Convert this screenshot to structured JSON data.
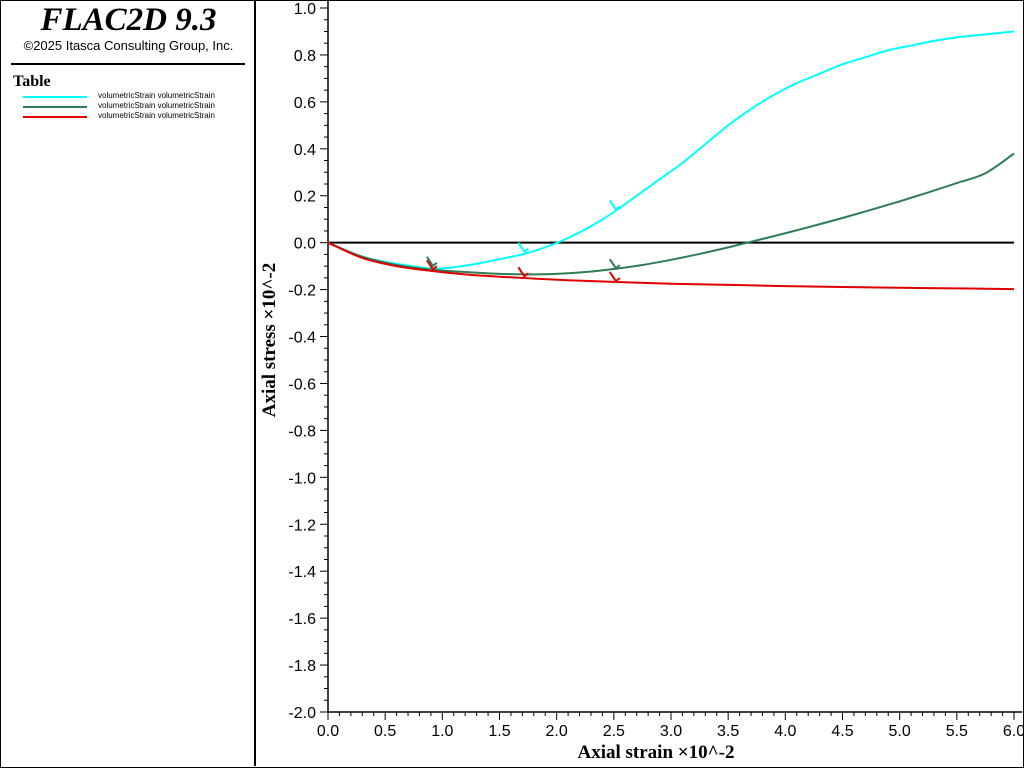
{
  "header": {
    "app_title": "FLAC2D 9.3",
    "copyright": "©2025 Itasca Consulting Group, Inc."
  },
  "legend": {
    "title": "Table",
    "items": [
      {
        "label": "volumetricStrain volumetricStrain",
        "color": "#00FFFF"
      },
      {
        "label": "volumetricStrain volumetricStrain",
        "color": "#2E7D55"
      },
      {
        "label": "volumetricStrain volumetricStrain",
        "color": "#E00000"
      }
    ]
  },
  "chart_data": {
    "type": "line",
    "xlabel": "Axial strain ×10^-2",
    "ylabel": "Axial stress ×10^-2",
    "xlim": [
      0.0,
      6.0
    ],
    "ylim": [
      -2.0,
      1.0
    ],
    "xticks": [
      "0.0",
      "0.5",
      "1.0",
      "1.5",
      "2.0",
      "2.5",
      "3.0",
      "3.5",
      "4.0",
      "4.5",
      "5.0",
      "5.5",
      "6.0"
    ],
    "yticks": [
      "1.0",
      "0.8",
      "0.6",
      "0.4",
      "0.2",
      "0.0",
      "-0.2",
      "-0.4",
      "-0.6",
      "-0.8",
      "-1.0",
      "-1.2",
      "-1.4",
      "-1.6",
      "-1.8",
      "-2.0"
    ],
    "zero_line": 0.0,
    "series": [
      {
        "name": "volumetricStrain volumetricStrain",
        "color": "#00FFFF",
        "x": [
          0.0,
          0.3,
          0.6,
          0.9,
          1.1,
          1.3,
          1.5,
          1.7,
          1.9,
          2.1,
          2.3,
          2.5,
          2.7,
          2.9,
          3.1,
          3.3,
          3.5,
          3.7,
          3.9,
          4.1,
          4.3,
          4.5,
          4.7,
          4.9,
          5.1,
          5.3,
          5.5,
          5.7,
          6.0
        ],
        "y": [
          0.0,
          -0.06,
          -0.09,
          -0.11,
          -0.105,
          -0.09,
          -0.07,
          -0.05,
          -0.02,
          0.02,
          0.07,
          0.13,
          0.2,
          0.27,
          0.34,
          0.42,
          0.5,
          0.57,
          0.63,
          0.68,
          0.72,
          0.76,
          0.79,
          0.82,
          0.84,
          0.86,
          0.875,
          0.885,
          0.9
        ]
      },
      {
        "name": "volumetricStrain volumetricStrain",
        "color": "#2E7D55",
        "x": [
          0.0,
          0.3,
          0.6,
          0.9,
          1.2,
          1.5,
          1.75,
          2.0,
          2.25,
          2.5,
          2.75,
          3.0,
          3.25,
          3.5,
          3.75,
          4.0,
          4.25,
          4.5,
          4.75,
          5.0,
          5.25,
          5.5,
          5.75,
          6.0
        ],
        "y": [
          0.0,
          -0.06,
          -0.095,
          -0.115,
          -0.125,
          -0.133,
          -0.135,
          -0.133,
          -0.125,
          -0.112,
          -0.095,
          -0.073,
          -0.048,
          -0.02,
          0.01,
          0.04,
          0.072,
          0.105,
          0.14,
          0.176,
          0.214,
          0.254,
          0.296,
          0.38
        ]
      },
      {
        "name": "volumetricStrain volumetricStrain",
        "color": "#E00000",
        "x": [
          0.0,
          0.3,
          0.6,
          0.9,
          1.2,
          1.5,
          1.8,
          2.1,
          2.5,
          3.0,
          3.5,
          4.0,
          4.5,
          5.0,
          5.5,
          6.0
        ],
        "y": [
          0.0,
          -0.065,
          -0.1,
          -0.12,
          -0.135,
          -0.145,
          -0.153,
          -0.16,
          -0.167,
          -0.175,
          -0.18,
          -0.185,
          -0.189,
          -0.192,
          -0.195,
          -0.198
        ]
      }
    ],
    "markers": [
      {
        "series": 0,
        "x": 1.7,
        "y": -0.03,
        "dir": 1
      },
      {
        "series": 0,
        "x": 2.5,
        "y": 0.15,
        "dir": 1
      },
      {
        "series": 1,
        "x": 0.9,
        "y": -0.09,
        "dir": 1
      },
      {
        "series": 1,
        "x": 2.5,
        "y": -0.1,
        "dir": 1
      },
      {
        "series": 2,
        "x": 0.9,
        "y": -0.105,
        "dir": 1
      },
      {
        "series": 2,
        "x": 1.7,
        "y": -0.135,
        "dir": 1
      },
      {
        "series": 2,
        "x": 2.5,
        "y": -0.155,
        "dir": 1
      }
    ]
  }
}
